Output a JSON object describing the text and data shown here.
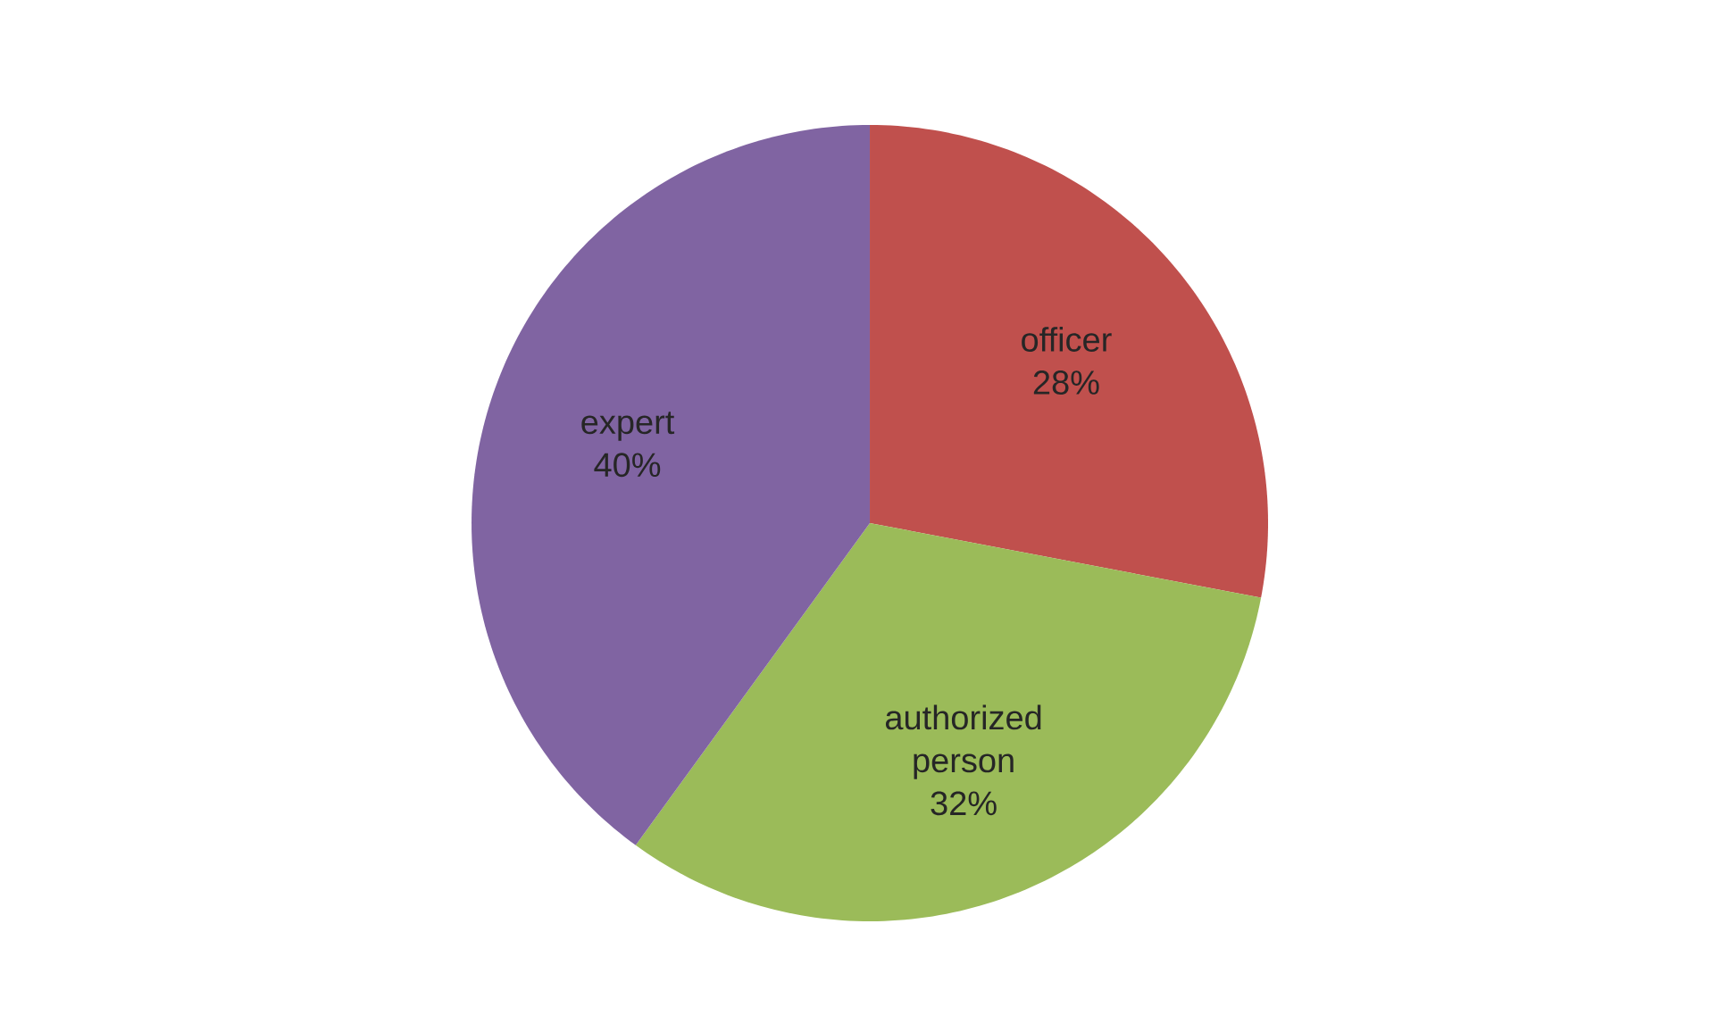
{
  "chart_data": {
    "type": "pie",
    "categories": [
      "officer",
      "authorized person",
      "expert"
    ],
    "values": [
      28,
      32,
      40
    ],
    "colors": [
      "#c0504d",
      "#9bbb59",
      "#8064a2"
    ],
    "value_labels": [
      "28%",
      "32%",
      "40%"
    ]
  }
}
